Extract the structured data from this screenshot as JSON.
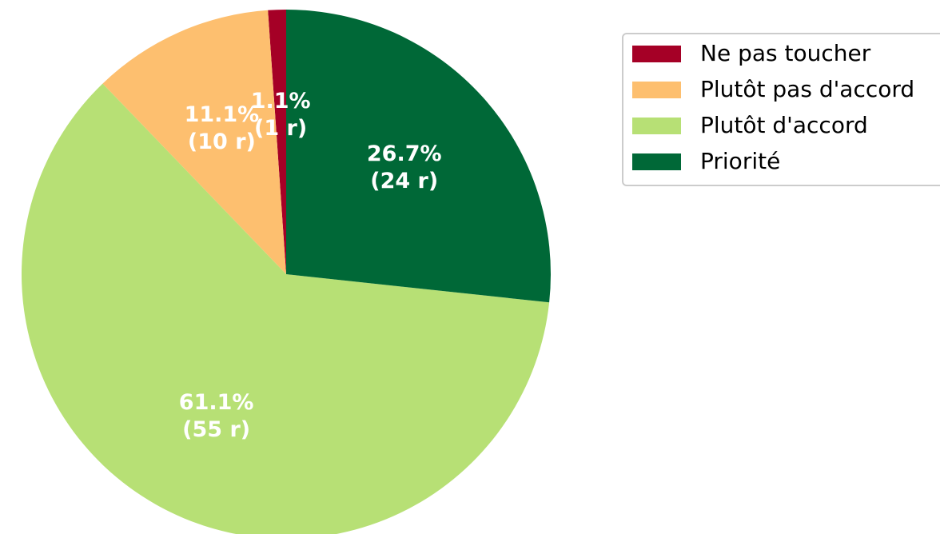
{
  "chart_data": {
    "type": "pie",
    "categories": [
      "Ne pas toucher",
      "Plutôt pas d'accord",
      "Plutôt d'accord",
      "Priorité"
    ],
    "values": [
      1.1,
      11.1,
      61.1,
      26.7
    ],
    "value_labels": [
      "1.1%",
      "11.1%",
      "61.1%",
      "26.7%"
    ],
    "count_labels": [
      "(1 r)",
      "(10 r)",
      "(55 r)",
      "(24 r)"
    ],
    "colors": [
      "#a50026",
      "#fdbf6f",
      "#b7e075",
      "#006837"
    ],
    "legend": "upper right"
  }
}
